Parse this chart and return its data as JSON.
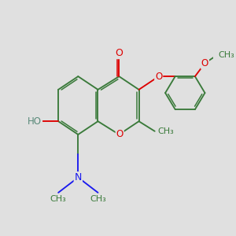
{
  "background_color": "#e0e0e0",
  "bond_color": "#3a7a3a",
  "atom_colors": {
    "O": "#dd0000",
    "N": "#1a1aee",
    "HO": "#5a8a7a",
    "C": "#3a7a3a"
  },
  "font_size": 8.5,
  "figsize": [
    3.0,
    3.0
  ],
  "dpi": 100,
  "xlim": [
    -1.55,
    1.65
  ],
  "ylim": [
    -1.55,
    1.45
  ]
}
